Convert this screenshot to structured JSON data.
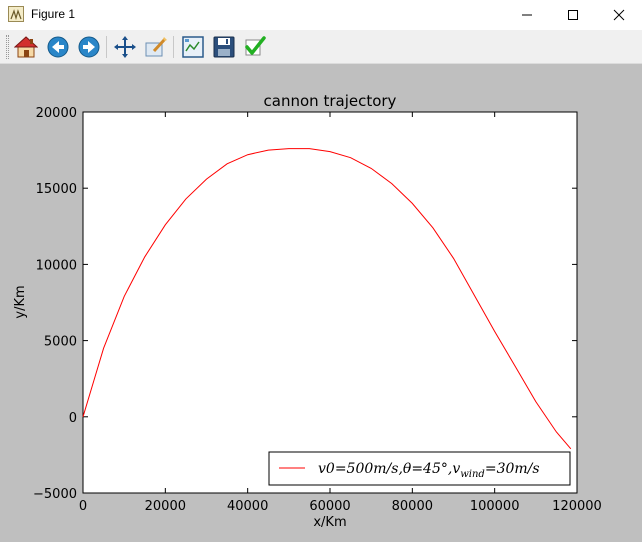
{
  "window": {
    "title": "Figure 1"
  },
  "toolbar": {
    "buttons": [
      {
        "name": "home-icon"
      },
      {
        "name": "back-icon"
      },
      {
        "name": "forward-icon"
      },
      {
        "name": "pan-icon"
      },
      {
        "name": "zoom-icon"
      },
      {
        "name": "configure-subplots-icon"
      },
      {
        "name": "save-icon"
      },
      {
        "name": "edit-parameters-icon"
      }
    ]
  },
  "colors": {
    "series": "#ff0000",
    "figure_background": "#bfbfbf",
    "axes_background": "#ffffff"
  },
  "chart_data": {
    "type": "line",
    "title": "cannon trajectory",
    "xlabel": "x/Km",
    "ylabel": "y/Km",
    "xlim": [
      0,
      120000
    ],
    "ylim": [
      -5000,
      20000
    ],
    "xticks": [
      0,
      20000,
      40000,
      60000,
      80000,
      100000,
      120000
    ],
    "xtick_labels": [
      "0",
      "20000",
      "40000",
      "60000",
      "80000",
      "100000",
      "120000"
    ],
    "yticks": [
      -5000,
      0,
      5000,
      10000,
      15000,
      20000
    ],
    "ytick_labels": [
      "−5000",
      "0",
      "5000",
      "10000",
      "15000",
      "20000"
    ],
    "grid": false,
    "legend_position": "lower-right",
    "series": [
      {
        "name": "v0=500m/s,θ=45°,v_wind=30m/s",
        "name_parts": {
          "a": "v0=500m/s,θ=45°,v",
          "sub": "wind",
          "b": "=30m/s"
        },
        "color": "#ff0000",
        "x": [
          0,
          5000,
          10000,
          15000,
          20000,
          25000,
          30000,
          35000,
          40000,
          45000,
          50000,
          55000,
          60000,
          65000,
          70000,
          75000,
          80000,
          85000,
          90000,
          95000,
          100000,
          105000,
          110000,
          115000,
          118500
        ],
        "y": [
          0,
          4500,
          7900,
          10500,
          12600,
          14300,
          15600,
          16600,
          17200,
          17500,
          17600,
          17600,
          17400,
          17000,
          16300,
          15300,
          14000,
          12400,
          10400,
          8000,
          5600,
          3300,
          1000,
          -1000,
          -2100
        ]
      }
    ]
  }
}
